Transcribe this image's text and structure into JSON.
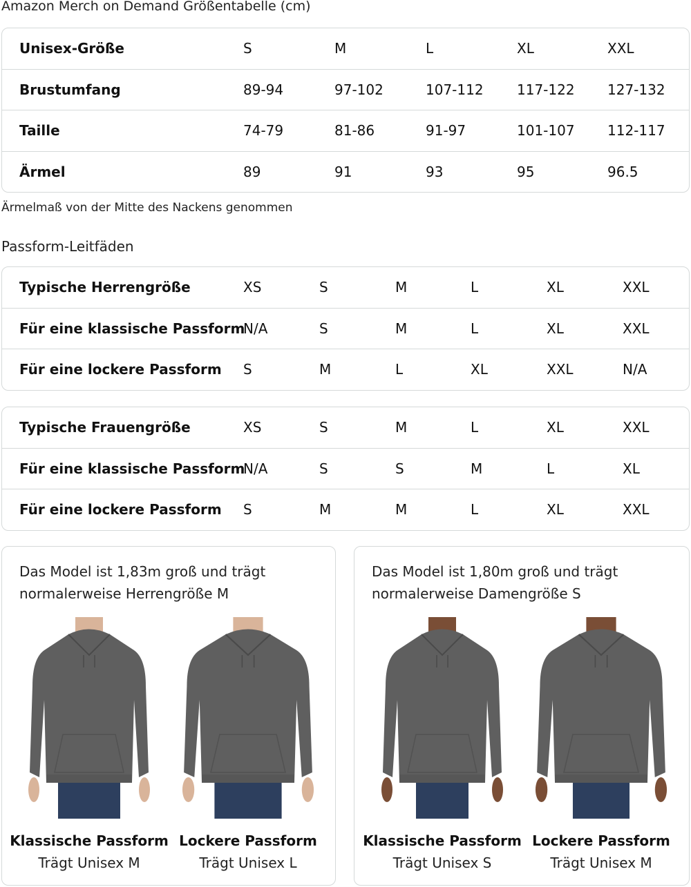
{
  "title": "Amazon Merch on Demand Größentabelle (cm)",
  "size_table": {
    "rows": [
      {
        "label": "Unisex-Größe",
        "values": [
          "S",
          "M",
          "L",
          "XL",
          "XXL"
        ]
      },
      {
        "label": "Brustumfang",
        "values": [
          "89-94",
          "97-102",
          "107-112",
          "117-122",
          "127-132"
        ]
      },
      {
        "label": "Taille",
        "values": [
          "74-79",
          "81-86",
          "91-97",
          "101-107",
          "112-117"
        ]
      },
      {
        "label": "Ärmel",
        "values": [
          "89",
          "91",
          "93",
          "95",
          "96.5"
        ]
      }
    ]
  },
  "note": "Ärmelmaß von der Mitte des Nackens genommen",
  "fit_guide_title": "Passform-Leitfäden",
  "men_table": {
    "rows": [
      {
        "label": "Typische Herrengröße",
        "values": [
          "XS",
          "S",
          "M",
          "L",
          "XL",
          "XXL"
        ]
      },
      {
        "label": "Für eine klassische Passform",
        "values": [
          "N/A",
          "S",
          "M",
          "L",
          "XL",
          "XXL"
        ]
      },
      {
        "label": "Für eine lockere Passform",
        "values": [
          "S",
          "M",
          "L",
          "XL",
          "XXL",
          "N/A"
        ]
      }
    ]
  },
  "women_table": {
    "rows": [
      {
        "label": "Typische Frauengröße",
        "values": [
          "XS",
          "S",
          "M",
          "L",
          "XL",
          "XXL"
        ]
      },
      {
        "label": "Für eine klassische Passform",
        "values": [
          "N/A",
          "S",
          "S",
          "M",
          "L",
          "XL"
        ]
      },
      {
        "label": "Für eine lockere Passform",
        "values": [
          "S",
          "M",
          "M",
          "L",
          "XL",
          "XXL"
        ]
      }
    ]
  },
  "cards": [
    {
      "text_line1": "Das Model ist 1,83m groß und trägt",
      "text_line2": "normalerweise Herrengröße M",
      "photos": [
        {
          "title": "Klassische Passform",
          "subtitle": "Trägt Unisex M"
        },
        {
          "title": "Lockere Passform",
          "subtitle": "Trägt Unisex L"
        }
      ]
    },
    {
      "text_line1": "Das Model ist 1,80m groß und trägt",
      "text_line2": "normalerweise Damengröße S",
      "photos": [
        {
          "title": "Klassische Passform",
          "subtitle": "Trägt Unisex S"
        },
        {
          "title": "Lockere Passform",
          "subtitle": "Trägt Unisex M"
        }
      ]
    }
  ],
  "colors": {
    "hoodie": "#5f5f5f",
    "jeans": "#2d3f5e",
    "border": "#d5d9d9"
  }
}
